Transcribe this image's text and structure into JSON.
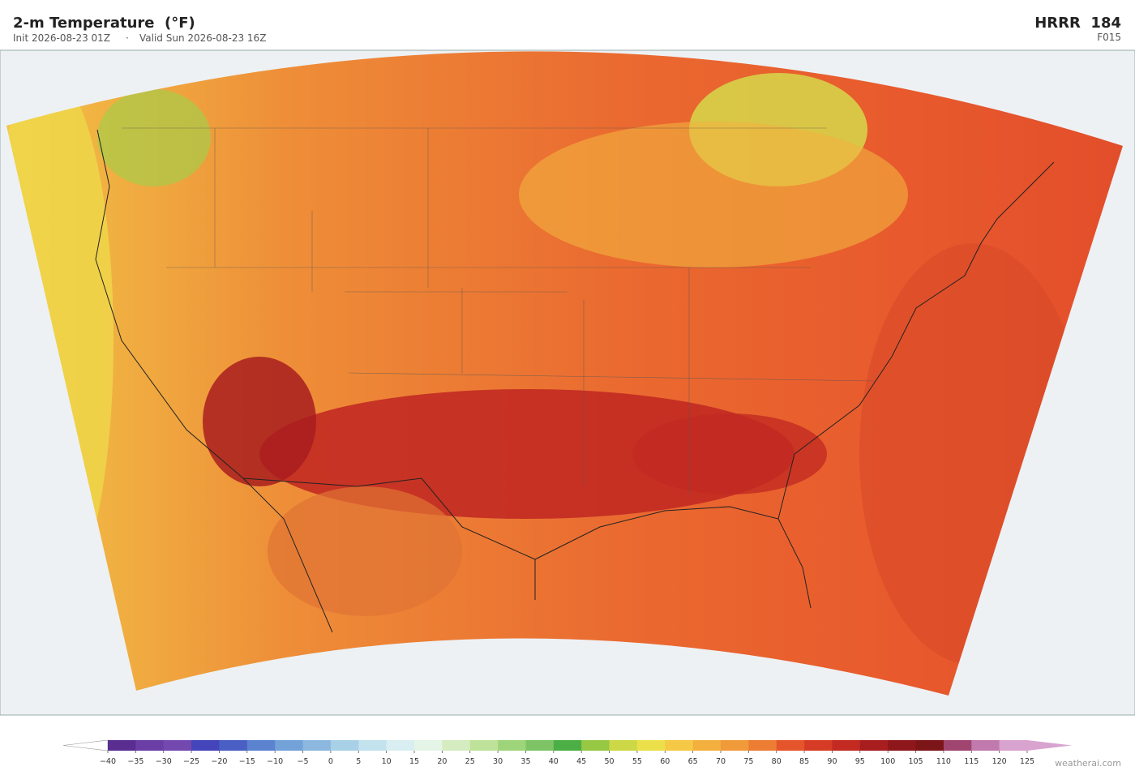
{
  "header": {
    "title": "2-m Temperature  (°F)",
    "init": "Init 2026-08-23 01Z",
    "separator": "·",
    "valid": "Valid Sun 2026-08-23 16Z",
    "model": "HRRR  184",
    "forecast_hour": "F015"
  },
  "legend": {
    "ticks": [
      {
        "value": -40,
        "label": "−40"
      },
      {
        "value": -35,
        "label": "−35"
      },
      {
        "value": -30,
        "label": "−30"
      },
      {
        "value": -25,
        "label": "−25"
      },
      {
        "value": -20,
        "label": "−20"
      },
      {
        "value": -15,
        "label": "−15"
      },
      {
        "value": -10,
        "label": "−10"
      },
      {
        "value": -5,
        "label": "−5"
      },
      0,
      5,
      10,
      15,
      20,
      25,
      30,
      35,
      40,
      45,
      50,
      55,
      60,
      65,
      70,
      75,
      80,
      85,
      90,
      95,
      100,
      105,
      110,
      115,
      120,
      125
    ],
    "colors": [
      "#5a2d91",
      "#6a3ea5",
      "#7349b0",
      "#4444bb",
      "#4a5fc4",
      "#5c83d0",
      "#72a2d8",
      "#8cb8df",
      "#a8d0e6",
      "#c2e2ed",
      "#d8eef0",
      "#e4f4e6",
      "#d5ecc0",
      "#bfe29a",
      "#9ed47a",
      "#7ec466",
      "#4caf45",
      "#96c843",
      "#cdd846",
      "#ece04a",
      "#f5c945",
      "#f3b03f",
      "#f09a3a",
      "#ed7d32",
      "#e5552c",
      "#d63c25",
      "#c22a22",
      "#a81d1e",
      "#8e171b",
      "#7b1518",
      "#a0456f",
      "#c07aae",
      "#d9a3cf"
    ],
    "under_color": "#ffffff",
    "over_color": "#d9a3cf"
  },
  "watermark": "weatherai.com"
}
